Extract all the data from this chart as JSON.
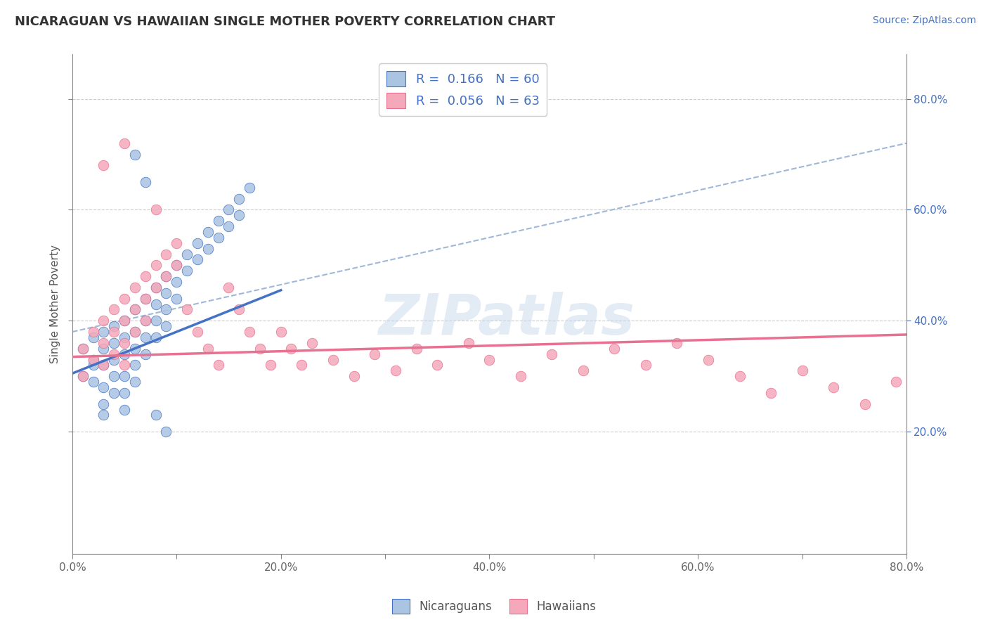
{
  "title": "NICARAGUAN VS HAWAIIAN SINGLE MOTHER POVERTY CORRELATION CHART",
  "source_text": "Source: ZipAtlas.com",
  "ylabel": "Single Mother Poverty",
  "xlim": [
    0.0,
    0.8
  ],
  "ylim": [
    -0.02,
    0.88
  ],
  "xtick_labels": [
    "0.0%",
    "",
    "20.0%",
    "",
    "40.0%",
    "",
    "60.0%",
    "",
    "80.0%"
  ],
  "xtick_vals": [
    0.0,
    0.1,
    0.2,
    0.3,
    0.4,
    0.5,
    0.6,
    0.7,
    0.8
  ],
  "ytick_labels": [
    "20.0%",
    "40.0%",
    "60.0%",
    "80.0%"
  ],
  "ytick_vals": [
    0.2,
    0.4,
    0.6,
    0.8
  ],
  "blue_color": "#aac4e2",
  "pink_color": "#f5a8ba",
  "blue_line_color": "#4472c4",
  "pink_line_color": "#e87090",
  "dashed_line_color": "#a0b8d8",
  "R_blue": 0.166,
  "N_blue": 60,
  "R_pink": 0.056,
  "N_pink": 63,
  "legend_label_blue": "Nicaraguans",
  "legend_label_pink": "Hawaiians",
  "watermark": "ZIPatlas",
  "blue_scatter_x": [
    0.01,
    0.01,
    0.02,
    0.02,
    0.02,
    0.02,
    0.03,
    0.03,
    0.03,
    0.03,
    0.03,
    0.03,
    0.04,
    0.04,
    0.04,
    0.04,
    0.04,
    0.05,
    0.05,
    0.05,
    0.05,
    0.05,
    0.05,
    0.06,
    0.06,
    0.06,
    0.06,
    0.06,
    0.07,
    0.07,
    0.07,
    0.07,
    0.08,
    0.08,
    0.08,
    0.08,
    0.09,
    0.09,
    0.09,
    0.09,
    0.1,
    0.1,
    0.1,
    0.11,
    0.11,
    0.12,
    0.12,
    0.13,
    0.13,
    0.14,
    0.14,
    0.15,
    0.15,
    0.16,
    0.16,
    0.17,
    0.06,
    0.07,
    0.08,
    0.09
  ],
  "blue_scatter_y": [
    0.3,
    0.35,
    0.32,
    0.37,
    0.33,
    0.29,
    0.35,
    0.38,
    0.32,
    0.28,
    0.25,
    0.23,
    0.36,
    0.39,
    0.33,
    0.3,
    0.27,
    0.4,
    0.37,
    0.34,
    0.3,
    0.27,
    0.24,
    0.42,
    0.38,
    0.35,
    0.32,
    0.29,
    0.44,
    0.4,
    0.37,
    0.34,
    0.46,
    0.43,
    0.4,
    0.37,
    0.48,
    0.45,
    0.42,
    0.39,
    0.5,
    0.47,
    0.44,
    0.52,
    0.49,
    0.54,
    0.51,
    0.56,
    0.53,
    0.58,
    0.55,
    0.6,
    0.57,
    0.62,
    0.59,
    0.64,
    0.7,
    0.65,
    0.23,
    0.2
  ],
  "pink_scatter_x": [
    0.01,
    0.01,
    0.02,
    0.02,
    0.03,
    0.03,
    0.03,
    0.04,
    0.04,
    0.04,
    0.05,
    0.05,
    0.05,
    0.05,
    0.06,
    0.06,
    0.06,
    0.07,
    0.07,
    0.07,
    0.08,
    0.08,
    0.09,
    0.09,
    0.1,
    0.1,
    0.11,
    0.12,
    0.13,
    0.14,
    0.15,
    0.16,
    0.17,
    0.18,
    0.19,
    0.2,
    0.21,
    0.22,
    0.23,
    0.25,
    0.27,
    0.29,
    0.31,
    0.33,
    0.35,
    0.38,
    0.4,
    0.43,
    0.46,
    0.49,
    0.52,
    0.55,
    0.58,
    0.61,
    0.64,
    0.67,
    0.7,
    0.73,
    0.76,
    0.79,
    0.03,
    0.05,
    0.08
  ],
  "pink_scatter_y": [
    0.35,
    0.3,
    0.38,
    0.33,
    0.4,
    0.36,
    0.32,
    0.42,
    0.38,
    0.34,
    0.44,
    0.4,
    0.36,
    0.32,
    0.46,
    0.42,
    0.38,
    0.48,
    0.44,
    0.4,
    0.5,
    0.46,
    0.52,
    0.48,
    0.54,
    0.5,
    0.42,
    0.38,
    0.35,
    0.32,
    0.46,
    0.42,
    0.38,
    0.35,
    0.32,
    0.38,
    0.35,
    0.32,
    0.36,
    0.33,
    0.3,
    0.34,
    0.31,
    0.35,
    0.32,
    0.36,
    0.33,
    0.3,
    0.34,
    0.31,
    0.35,
    0.32,
    0.36,
    0.33,
    0.3,
    0.27,
    0.31,
    0.28,
    0.25,
    0.29,
    0.68,
    0.72,
    0.6
  ],
  "blue_trend_x0": 0.0,
  "blue_trend_y0": 0.305,
  "blue_trend_x1": 0.2,
  "blue_trend_y1": 0.455,
  "pink_trend_x0": 0.0,
  "pink_trend_y0": 0.335,
  "pink_trend_x1": 0.8,
  "pink_trend_y1": 0.375,
  "dashed_trend_x0": 0.0,
  "dashed_trend_y0": 0.38,
  "dashed_trend_x1": 0.8,
  "dashed_trend_y1": 0.72
}
